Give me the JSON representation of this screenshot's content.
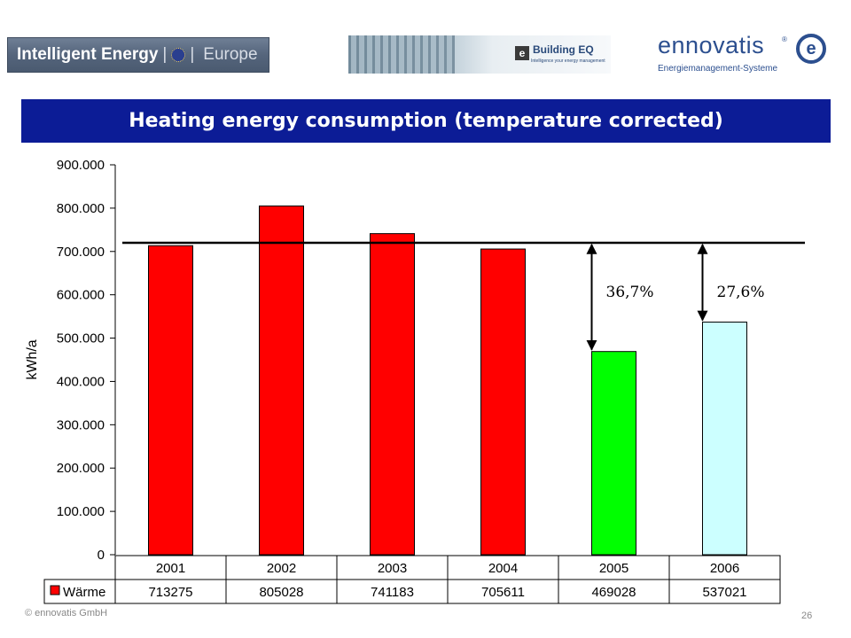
{
  "logos": {
    "intelligent_energy": {
      "name": "Intelligent Energy",
      "separator": "|",
      "suffix": "Europe"
    },
    "building_eq": {
      "mark": "e",
      "name": "Building EQ",
      "tagline": "Intelligence your energy management"
    },
    "ennovatis": {
      "name": "ennovatis",
      "registered": "®",
      "subtitle": "Energiemanagement-Systeme",
      "emblem": "e"
    }
  },
  "title": "Heating energy consumption (temperature corrected)",
  "colors": {
    "title_bg": "#0c1c96",
    "red": "#ff0000",
    "green": "#00ff00",
    "light_cyan": "#ccffff",
    "text": "#000000"
  },
  "chart_data": {
    "type": "bar",
    "ylabel": "kWh/a",
    "ylim": [
      0,
      900000
    ],
    "yticks": [
      0,
      100000,
      200000,
      300000,
      400000,
      500000,
      600000,
      700000,
      800000,
      900000
    ],
    "ytick_labels": [
      "0",
      "100.000",
      "200.000",
      "300.000",
      "400.000",
      "500.000",
      "600.000",
      "700.000",
      "800.000",
      "900.000"
    ],
    "categories": [
      "2001",
      "2002",
      "2003",
      "2004",
      "2005",
      "2006"
    ],
    "series": [
      {
        "name": "Wärme",
        "values": [
          713275,
          805028,
          741183,
          705611,
          469028,
          537021
        ],
        "value_labels": [
          "713275",
          "805028",
          "741183",
          "705611",
          "469028",
          "537021"
        ],
        "colors": [
          "#ff0000",
          "#ff0000",
          "#ff0000",
          "#ff0000",
          "#00ff00",
          "#ccffff"
        ]
      }
    ],
    "reference_line": {
      "value": 720000
    },
    "annotations": [
      {
        "category": "2005",
        "text": "36,7%"
      },
      {
        "category": "2006",
        "text": "27,6%"
      }
    ],
    "data_table": true,
    "legend": "in data table"
  },
  "footer": {
    "copyright": "© ennovatis GmbH",
    "page_number": "26"
  }
}
